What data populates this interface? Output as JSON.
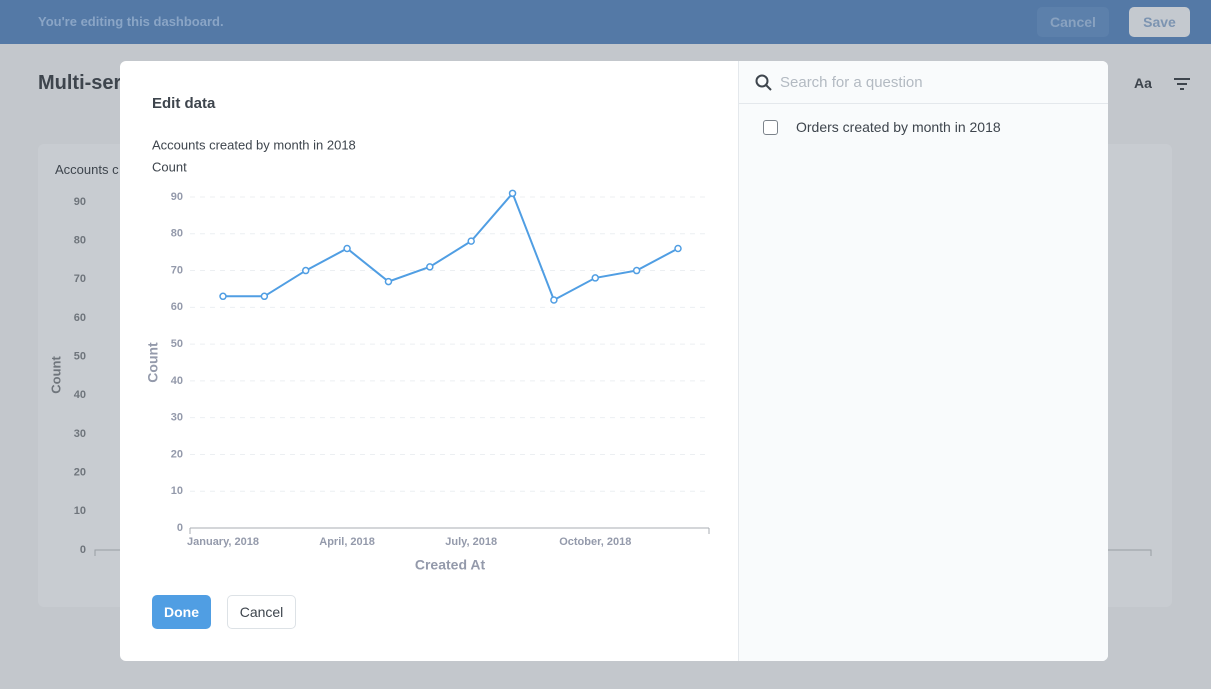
{
  "top_bar": {
    "message": "You're editing this dashboard.",
    "cancel": "Cancel",
    "save": "Save"
  },
  "dashboard": {
    "title": "Multi-ser",
    "text_settings": "Aa",
    "card": {
      "title": "Accounts c",
      "y_label": "Count",
      "yticks": [
        0,
        10,
        20,
        30,
        40,
        50,
        60,
        70,
        80,
        90
      ]
    }
  },
  "modal": {
    "title": "Edit data",
    "done": "Done",
    "cancel": "Cancel",
    "search_placeholder": "Search for a question",
    "questions": [
      "Orders created by month in 2018"
    ]
  },
  "chart_data": {
    "type": "line",
    "title": "Accounts created by month in 2018",
    "categories": [
      "January, 2018",
      null,
      null,
      "April, 2018",
      null,
      null,
      "July, 2018",
      null,
      null,
      "October, 2018",
      null,
      null
    ],
    "series": [
      {
        "name": "Count",
        "color": "#509ee3",
        "values": [
          63,
          63,
          70,
          76,
          67,
          71,
          78,
          91,
          62,
          68,
          70,
          76
        ]
      }
    ],
    "x_label": "Created At",
    "y_label": "Count",
    "ylim": [
      0,
      90
    ],
    "yticks": [
      0,
      10,
      20,
      30,
      40,
      50,
      60,
      70,
      80,
      90
    ],
    "grid": true
  }
}
